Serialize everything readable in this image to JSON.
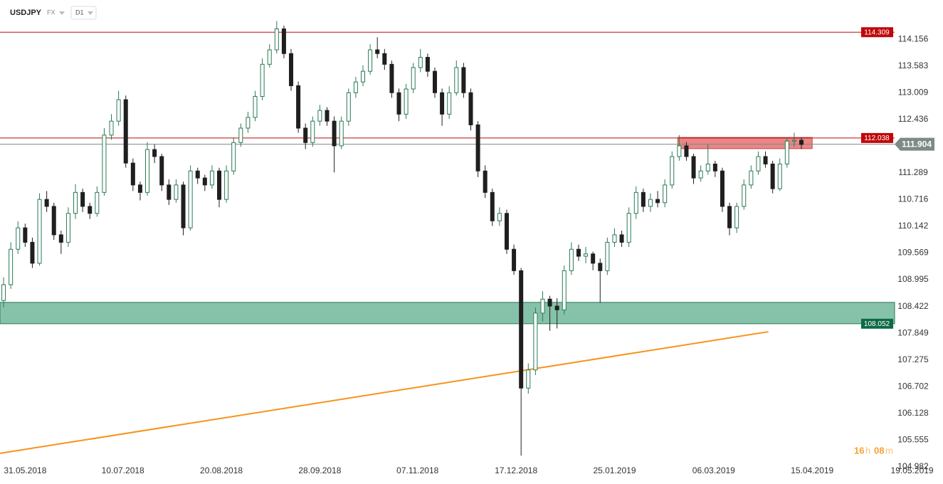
{
  "chart_data": {
    "type": "candlestick",
    "title": "USDJPY",
    "market": "FX",
    "timeframe": "D1",
    "ylim": [
      105.07,
      115.0
    ],
    "yticks": [
      114.156,
      113.583,
      113.009,
      112.436,
      111.289,
      110.716,
      110.142,
      109.569,
      108.995,
      108.422,
      107.849,
      107.275,
      106.702,
      106.128,
      105.555,
      104.982
    ],
    "xlim": [
      -0.5,
      130.7
    ],
    "xticks": [
      {
        "value": 3,
        "label": "31.05.2018"
      },
      {
        "value": 16.6,
        "label": "10.07.2018"
      },
      {
        "value": 30.3,
        "label": "20.08.2018"
      },
      {
        "value": 44,
        "label": "28.09.2018"
      },
      {
        "value": 57.6,
        "label": "07.11.2018"
      },
      {
        "value": 71.3,
        "label": "17.12.2018"
      },
      {
        "value": 85,
        "label": "25.01.2019"
      },
      {
        "value": 98.8,
        "label": "06.03.2019"
      },
      {
        "value": 112.5,
        "label": "15.04.2019"
      },
      {
        "value": 126.4,
        "label": "19.05.2019"
      }
    ],
    "up_color": "#2a7a55",
    "down_color": "#1f1f1f",
    "ohlc": [
      [
        108.55,
        109.05,
        108.4,
        108.89
      ],
      [
        108.89,
        109.8,
        108.8,
        109.65
      ],
      [
        109.65,
        110.25,
        109.55,
        110.11
      ],
      [
        110.11,
        110.2,
        109.7,
        109.8
      ],
      [
        109.8,
        109.9,
        109.25,
        109.35
      ],
      [
        109.35,
        110.85,
        109.3,
        110.72
      ],
      [
        110.72,
        110.9,
        110.45,
        110.57
      ],
      [
        110.57,
        110.65,
        109.85,
        109.96
      ],
      [
        109.96,
        110.05,
        109.55,
        109.8
      ],
      [
        109.8,
        110.55,
        109.7,
        110.42
      ],
      [
        110.42,
        111.05,
        110.3,
        110.87
      ],
      [
        110.87,
        110.95,
        110.45,
        110.57
      ],
      [
        110.57,
        110.65,
        110.3,
        110.42
      ],
      [
        110.42,
        111.0,
        110.35,
        110.87
      ],
      [
        110.87,
        112.25,
        110.8,
        112.1
      ],
      [
        112.1,
        112.55,
        112.0,
        112.4
      ],
      [
        112.4,
        113.05,
        112.3,
        112.86
      ],
      [
        112.86,
        112.95,
        111.4,
        111.5
      ],
      [
        111.5,
        111.6,
        110.9,
        111.03
      ],
      [
        111.03,
        111.1,
        110.7,
        110.87
      ],
      [
        110.87,
        111.95,
        110.8,
        111.79
      ],
      [
        111.79,
        111.9,
        111.5,
        111.64
      ],
      [
        111.64,
        111.7,
        110.9,
        111.03
      ],
      [
        111.03,
        111.15,
        110.6,
        110.72
      ],
      [
        110.72,
        111.15,
        110.65,
        111.03
      ],
      [
        111.03,
        111.1,
        109.95,
        110.11
      ],
      [
        110.11,
        111.45,
        110.05,
        111.33
      ],
      [
        111.33,
        111.4,
        111.05,
        111.18
      ],
      [
        111.18,
        111.25,
        110.9,
        111.03
      ],
      [
        111.03,
        111.45,
        110.95,
        111.33
      ],
      [
        111.33,
        111.4,
        110.55,
        110.72
      ],
      [
        110.72,
        111.45,
        110.65,
        111.33
      ],
      [
        111.33,
        112.05,
        111.25,
        111.94
      ],
      [
        111.94,
        112.35,
        111.85,
        112.25
      ],
      [
        112.25,
        112.6,
        112.15,
        112.48
      ],
      [
        112.48,
        113.05,
        112.4,
        112.93
      ],
      [
        112.93,
        113.75,
        112.85,
        113.62
      ],
      [
        113.62,
        114.05,
        113.55,
        113.93
      ],
      [
        113.93,
        114.55,
        113.85,
        114.38
      ],
      [
        114.38,
        114.45,
        113.75,
        113.85
      ],
      [
        113.85,
        113.95,
        113.05,
        113.16
      ],
      [
        113.16,
        113.25,
        112.15,
        112.25
      ],
      [
        112.25,
        112.35,
        111.8,
        111.94
      ],
      [
        111.94,
        112.5,
        111.85,
        112.4
      ],
      [
        112.4,
        112.75,
        112.3,
        112.63
      ],
      [
        112.63,
        112.7,
        112.3,
        112.4
      ],
      [
        112.4,
        112.5,
        111.3,
        111.87
      ],
      [
        111.87,
        112.5,
        111.8,
        112.4
      ],
      [
        112.4,
        113.1,
        112.3,
        113.01
      ],
      [
        113.01,
        113.35,
        112.9,
        113.24
      ],
      [
        113.24,
        113.6,
        113.15,
        113.47
      ],
      [
        113.47,
        114.05,
        113.4,
        113.93
      ],
      [
        113.93,
        114.2,
        113.75,
        113.85
      ],
      [
        113.85,
        113.95,
        113.5,
        113.62
      ],
      [
        113.62,
        113.7,
        112.9,
        113.01
      ],
      [
        113.01,
        113.1,
        112.4,
        112.55
      ],
      [
        112.55,
        113.2,
        112.45,
        113.09
      ],
      [
        113.09,
        113.65,
        113.0,
        113.55
      ],
      [
        113.55,
        113.95,
        113.45,
        113.77
      ],
      [
        113.77,
        113.85,
        113.35,
        113.47
      ],
      [
        113.47,
        113.55,
        112.9,
        113.01
      ],
      [
        113.01,
        113.1,
        112.3,
        112.55
      ],
      [
        112.55,
        113.15,
        112.45,
        113.01
      ],
      [
        113.01,
        113.7,
        112.95,
        113.55
      ],
      [
        113.55,
        113.65,
        112.9,
        113.01
      ],
      [
        113.01,
        113.1,
        112.2,
        112.32
      ],
      [
        112.32,
        112.4,
        111.2,
        111.33
      ],
      [
        111.33,
        111.45,
        110.75,
        110.87
      ],
      [
        110.87,
        110.95,
        110.15,
        110.26
      ],
      [
        110.26,
        110.55,
        110.15,
        110.42
      ],
      [
        110.42,
        110.5,
        109.55,
        109.65
      ],
      [
        109.65,
        109.75,
        109.1,
        109.19
      ],
      [
        109.19,
        109.25,
        105.22,
        106.67
      ],
      [
        106.67,
        107.2,
        106.55,
        107.06
      ],
      [
        107.06,
        108.4,
        106.95,
        108.28
      ],
      [
        108.28,
        108.75,
        108.1,
        108.58
      ],
      [
        108.58,
        108.65,
        107.9,
        108.43
      ],
      [
        108.43,
        108.6,
        107.95,
        108.35
      ],
      [
        108.35,
        109.3,
        108.25,
        109.19
      ],
      [
        109.19,
        109.8,
        109.1,
        109.65
      ],
      [
        109.65,
        109.75,
        109.4,
        109.5
      ],
      [
        109.5,
        109.7,
        109.35,
        109.55
      ],
      [
        109.55,
        109.6,
        109.2,
        109.35
      ],
      [
        109.35,
        109.45,
        108.5,
        109.19
      ],
      [
        109.19,
        109.9,
        109.1,
        109.8
      ],
      [
        109.8,
        110.1,
        109.7,
        109.96
      ],
      [
        109.96,
        110.05,
        109.7,
        109.8
      ],
      [
        109.8,
        110.55,
        109.7,
        110.42
      ],
      [
        110.42,
        111.0,
        110.3,
        110.87
      ],
      [
        110.87,
        110.95,
        110.45,
        110.57
      ],
      [
        110.57,
        110.85,
        110.45,
        110.72
      ],
      [
        110.72,
        110.9,
        110.55,
        110.65
      ],
      [
        110.65,
        111.15,
        110.55,
        111.03
      ],
      [
        111.03,
        111.75,
        110.95,
        111.64
      ],
      [
        111.64,
        112.1,
        111.55,
        111.87
      ],
      [
        111.87,
        111.95,
        111.55,
        111.64
      ],
      [
        111.64,
        111.7,
        111.05,
        111.18
      ],
      [
        111.18,
        111.45,
        111.1,
        111.33
      ],
      [
        111.33,
        111.9,
        111.25,
        111.48
      ],
      [
        111.48,
        111.55,
        111.2,
        111.33
      ],
      [
        111.33,
        111.4,
        110.45,
        110.57
      ],
      [
        110.57,
        110.65,
        109.95,
        110.11
      ],
      [
        110.11,
        110.65,
        110.0,
        110.57
      ],
      [
        110.57,
        111.15,
        110.5,
        111.03
      ],
      [
        111.03,
        111.45,
        110.95,
        111.33
      ],
      [
        111.33,
        111.75,
        111.25,
        111.64
      ],
      [
        111.64,
        111.75,
        111.4,
        111.48
      ],
      [
        111.48,
        111.55,
        110.85,
        110.95
      ],
      [
        110.95,
        111.6,
        110.9,
        111.48
      ],
      [
        111.48,
        112.05,
        111.4,
        111.97
      ],
      [
        111.97,
        112.15,
        111.85,
        111.99
      ],
      [
        111.99,
        112.05,
        111.8,
        111.9
      ]
    ],
    "levels": [
      {
        "value": 114.309,
        "color": "#c0080a"
      },
      {
        "value": 112.038,
        "color": "#c0080a"
      }
    ],
    "current_price": 111.904,
    "current_color": "#7d8a87",
    "zones": [
      {
        "low": 108.052,
        "high": 108.51,
        "x": [
          -0.5,
          124
        ],
        "color": "#7fbfa5",
        "border": "#2a7a55",
        "label_color": "#0b6b45"
      },
      {
        "low": 111.81,
        "high": 112.05,
        "x": [
          93.8,
          112.5
        ],
        "color": "#e98080",
        "border": "#cc4444"
      }
    ],
    "trendline": {
      "x": [
        -0.5,
        106.4
      ],
      "values": [
        105.27,
        107.88
      ],
      "color": "#f7931a"
    },
    "countdown": {
      "hours": "16",
      "hours_unit": "h",
      "minutes": "08",
      "minutes_unit": "m"
    }
  }
}
